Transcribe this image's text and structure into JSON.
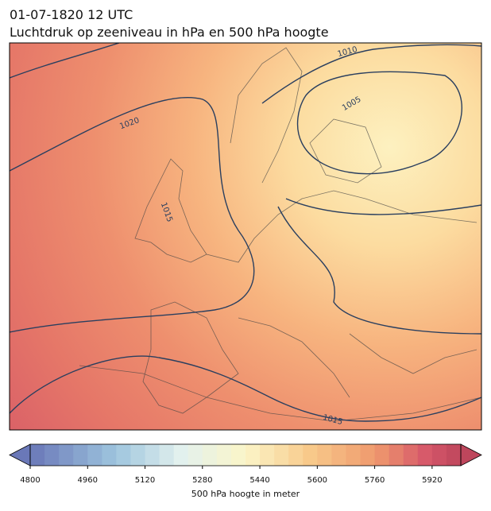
{
  "title": [
    "01-07-1820 12 UTC",
    "Luchtdruk op zeeniveau in hPa en 500 hPa hoogte"
  ],
  "isobar_labels": [
    "1010",
    "1005",
    "1020",
    "1015",
    "1015"
  ],
  "colorbar": {
    "label": "500 hPa hoogte in meter",
    "lim": [
      4800,
      6000
    ],
    "step": 40,
    "ticks": [
      4800,
      4960,
      5120,
      5280,
      5440,
      5600,
      5760,
      5920
    ]
  }
}
